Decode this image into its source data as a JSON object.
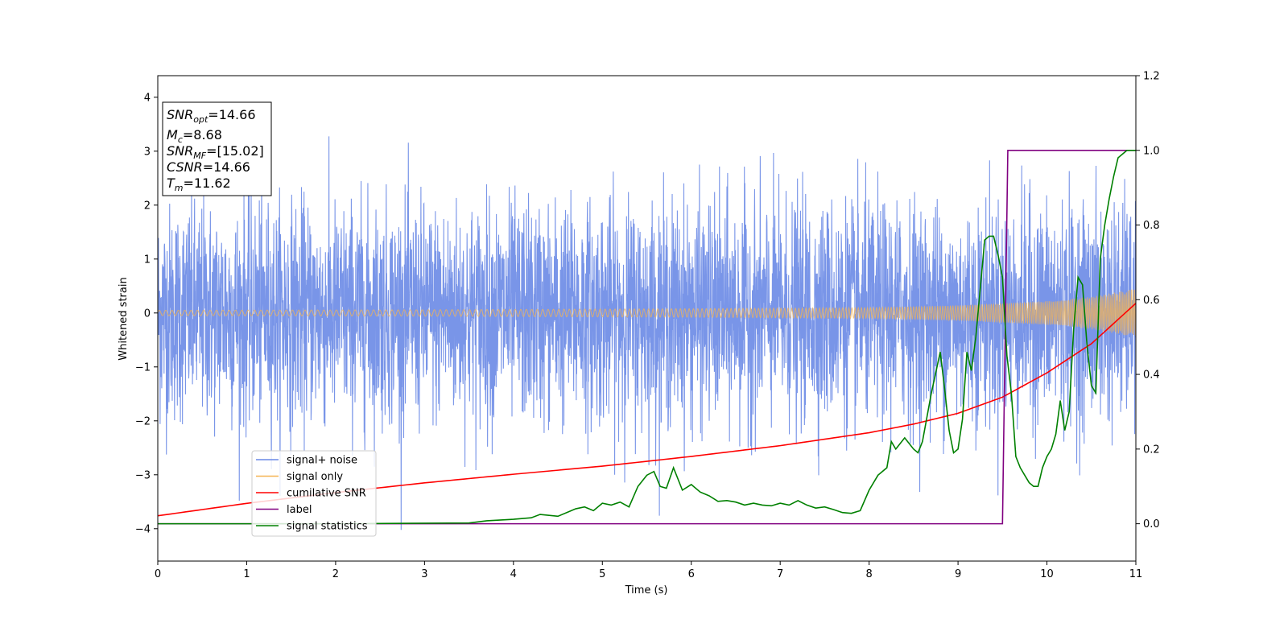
{
  "chart_data": {
    "type": "line",
    "xlabel": "Time (s)",
    "ylabel": "Whitened strain",
    "xlim": [
      0,
      11
    ],
    "ylim": [
      -4.6,
      4.4
    ],
    "y2lim": [
      -0.1,
      1.2
    ],
    "x_ticks": [
      0,
      1,
      2,
      3,
      4,
      5,
      6,
      7,
      8,
      9,
      10,
      11
    ],
    "y_ticks": [
      -4,
      -3,
      -2,
      -1,
      0,
      1,
      2,
      3,
      4
    ],
    "y2_ticks": [
      "0.0",
      "0.2",
      "0.4",
      "0.6",
      "0.8",
      "1.0",
      "1.2"
    ],
    "y2_tick_values": [
      0.0,
      0.2,
      0.4,
      0.6,
      0.8,
      1.0,
      1.2
    ],
    "colors": {
      "signal_noise": "#6a89e6",
      "signal_only": "#f5b452",
      "cumulative_snr": "#ff0000",
      "label": "#800080",
      "signal_statistics": "#008000"
    },
    "stats_box": [
      {
        "sym": "SNR",
        "sub": "opt",
        "value": "=14.66"
      },
      {
        "sym": "M",
        "sub": "c",
        "value": "=8.68"
      },
      {
        "sym": "SNR",
        "sub": "MF",
        "value": "=[15.02]"
      },
      {
        "sym": "CSNR",
        "sub": "",
        "value": "=14.66"
      },
      {
        "sym": "T",
        "sub": "m",
        "value": "=11.62"
      }
    ],
    "legend": {
      "placement": "lower-left",
      "entries": [
        {
          "label": "signal+ noise",
          "color": "#6a89e6"
        },
        {
          "label": "signal only",
          "color": "#f5b452"
        },
        {
          "label": "cumilative SNR",
          "color": "#ff0000"
        },
        {
          "label": "label",
          "color": "#800080"
        },
        {
          "label": "signal statistics",
          "color": "#008000"
        }
      ]
    },
    "series": [
      {
        "name": "cumilative SNR",
        "axis": "left",
        "x": [
          0,
          1,
          2,
          3,
          4,
          5,
          6,
          7,
          8,
          8.5,
          9,
          9.5,
          10,
          10.5,
          11
        ],
        "y": [
          -3.76,
          -3.53,
          -3.33,
          -3.15,
          -2.99,
          -2.84,
          -2.66,
          -2.46,
          -2.22,
          -2.06,
          -1.86,
          -1.56,
          -1.11,
          -0.57,
          0.18
        ]
      },
      {
        "name": "label",
        "axis": "right",
        "x": [
          0,
          9.5,
          9.56,
          11
        ],
        "y": [
          0,
          0,
          1,
          1
        ]
      },
      {
        "name": "signal statistics",
        "axis": "right",
        "x": [
          0,
          2,
          3.5,
          3.7,
          4.0,
          4.2,
          4.3,
          4.5,
          4.7,
          4.8,
          4.9,
          5.0,
          5.1,
          5.2,
          5.3,
          5.4,
          5.5,
          5.58,
          5.65,
          5.72,
          5.8,
          5.9,
          6.0,
          6.1,
          6.2,
          6.3,
          6.4,
          6.5,
          6.6,
          6.7,
          6.8,
          6.9,
          7.0,
          7.1,
          7.2,
          7.3,
          7.4,
          7.5,
          7.6,
          7.7,
          7.8,
          7.9,
          8.0,
          8.1,
          8.2,
          8.25,
          8.3,
          8.4,
          8.5,
          8.55,
          8.6,
          8.7,
          8.8,
          8.85,
          8.9,
          8.95,
          9.0,
          9.05,
          9.1,
          9.15,
          9.2,
          9.3,
          9.35,
          9.4,
          9.45,
          9.5,
          9.55,
          9.6,
          9.65,
          9.7,
          9.8,
          9.85,
          9.9,
          9.95,
          10.0,
          10.05,
          10.1,
          10.15,
          10.2,
          10.25,
          10.3,
          10.35,
          10.4,
          10.45,
          10.5,
          10.55,
          10.6,
          10.65,
          10.7,
          10.75,
          10.8,
          10.85,
          10.9,
          10.95,
          11.0
        ],
        "y": [
          0.0,
          0.0,
          0.002,
          0.008,
          0.012,
          0.016,
          0.025,
          0.02,
          0.04,
          0.045,
          0.035,
          0.055,
          0.05,
          0.058,
          0.045,
          0.1,
          0.13,
          0.14,
          0.1,
          0.095,
          0.15,
          0.09,
          0.105,
          0.085,
          0.075,
          0.06,
          0.062,
          0.058,
          0.05,
          0.055,
          0.05,
          0.048,
          0.055,
          0.05,
          0.062,
          0.05,
          0.042,
          0.045,
          0.038,
          0.03,
          0.028,
          0.035,
          0.09,
          0.13,
          0.15,
          0.22,
          0.2,
          0.23,
          0.2,
          0.19,
          0.22,
          0.35,
          0.46,
          0.36,
          0.25,
          0.19,
          0.2,
          0.28,
          0.46,
          0.41,
          0.5,
          0.76,
          0.77,
          0.77,
          0.72,
          0.66,
          0.45,
          0.35,
          0.18,
          0.15,
          0.11,
          0.1,
          0.1,
          0.15,
          0.18,
          0.2,
          0.24,
          0.33,
          0.25,
          0.3,
          0.52,
          0.66,
          0.64,
          0.48,
          0.37,
          0.35,
          0.71,
          0.8,
          0.87,
          0.93,
          0.98,
          0.99,
          1.0,
          1.0,
          1.0
        ]
      },
      {
        "name": "signal only",
        "axis": "left",
        "envelope": {
          "x": [
            0,
            3,
            6,
            8,
            9,
            10,
            10.5,
            11
          ],
          "amplitude": [
            0.05,
            0.06,
            0.08,
            0.1,
            0.14,
            0.22,
            0.3,
            0.45
          ]
        }
      },
      {
        "name": "signal+ noise",
        "axis": "left",
        "noise_sigma": 1.0,
        "typical_range": [
          -3.9,
          3.85
        ]
      }
    ]
  }
}
